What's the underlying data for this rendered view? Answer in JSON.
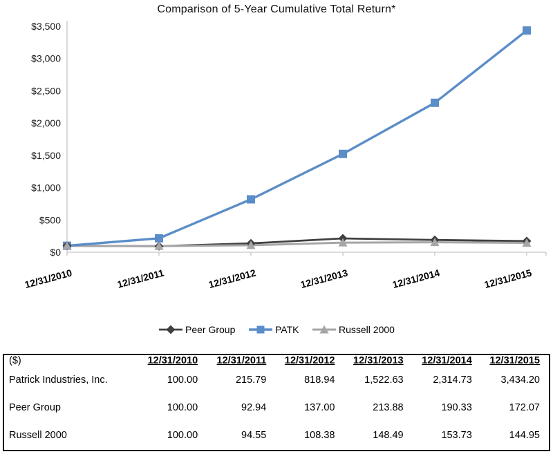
{
  "chart_data": {
    "type": "line",
    "title": "Comparison of 5-Year Cumulative Total Return*",
    "categories": [
      "12/31/2010",
      "12/31/2011",
      "12/31/2012",
      "12/31/2013",
      "12/31/2014",
      "12/31/2015"
    ],
    "series": [
      {
        "name": "Peer Group",
        "marker": "diamond",
        "color": "#404040",
        "line_width": 2.8,
        "values": [
          100.0,
          92.94,
          137.0,
          213.88,
          190.33,
          172.07
        ]
      },
      {
        "name": "PATK",
        "marker": "square",
        "color": "#5B8DC8",
        "line_width": 3.4,
        "values": [
          100.0,
          215.79,
          818.94,
          1522.63,
          2314.73,
          3434.2
        ]
      },
      {
        "name": "Russell 2000",
        "marker": "triangle",
        "color": "#A6A6A6",
        "line_width": 3.0,
        "values": [
          100.0,
          94.55,
          108.38,
          148.49,
          153.73,
          144.95
        ]
      }
    ],
    "y_ticks": [
      "$0",
      "$500",
      "$1,000",
      "$1,500",
      "$2,000",
      "$2,500",
      "$3,000",
      "$3,500"
    ],
    "ylim": [
      0,
      3500
    ],
    "y_step": 500,
    "grid": false,
    "legend_position": "bottom",
    "axis_color": "#C6C6C6"
  },
  "table": {
    "unit_label": "($)",
    "columns": [
      "12/31/2010",
      "12/31/2011",
      "12/31/2012",
      "12/31/2013",
      "12/31/2014",
      "12/31/2015"
    ],
    "rows": [
      {
        "label": "Patrick Industries, Inc.",
        "values": [
          "100.00",
          "215.79",
          "818.94",
          "1,522.63",
          "2,314.73",
          "3,434.20"
        ]
      },
      {
        "label": "Peer Group",
        "values": [
          "100.00",
          "92.94",
          "137.00",
          "213.88",
          "190.33",
          "172.07"
        ]
      },
      {
        "label": "Russell 2000",
        "values": [
          "100.00",
          "94.55",
          "108.38",
          "148.49",
          "153.73",
          "144.95"
        ]
      }
    ]
  }
}
